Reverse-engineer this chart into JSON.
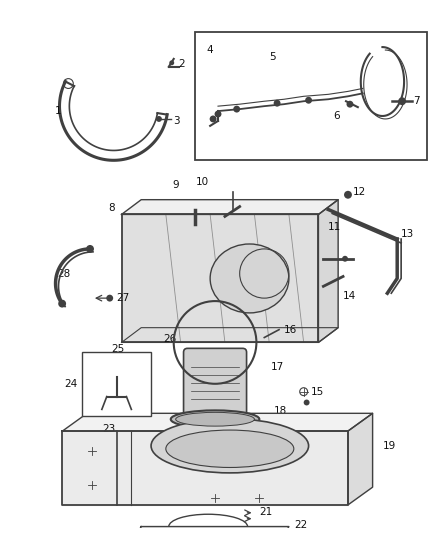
{
  "bg_color": "#ffffff",
  "line_color": "#404040",
  "label_color": "#111111",
  "font_size": 7.5,
  "fig_width": 4.38,
  "fig_height": 5.33,
  "dpi": 100
}
